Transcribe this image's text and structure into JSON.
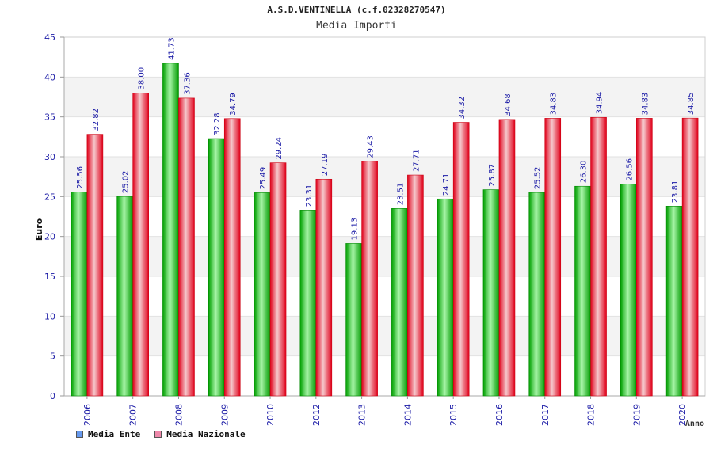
{
  "chart_data": {
    "type": "bar",
    "title": "A.S.D.VENTINELLA (c.f.02328270547)",
    "subtitle": "Media Importi",
    "xlabel": "Anno",
    "ylabel": "Euro",
    "ylim": [
      0,
      45
    ],
    "yticks": [
      "0",
      "5",
      "10",
      "15",
      "20",
      "25",
      "30",
      "35",
      "40",
      "45"
    ],
    "categories": [
      "2006",
      "2007",
      "2008",
      "2009",
      "2010",
      "2012",
      "2013",
      "2014",
      "2015",
      "2016",
      "2017",
      "2018",
      "2019",
      "2020"
    ],
    "series": [
      {
        "name": "Media Ente",
        "color": "#00b400",
        "legend_color": "#6699ee",
        "values": [
          25.56,
          25.02,
          41.73,
          32.28,
          25.49,
          23.31,
          19.13,
          23.51,
          24.71,
          25.87,
          25.52,
          26.3,
          26.56,
          23.81
        ],
        "labels": [
          "25.56",
          "25.02",
          "41.73",
          "32.28",
          "25.49",
          "23.31",
          "19.13",
          "23.51",
          "24.71",
          "25.87",
          "25.52",
          "26.30",
          "26.56",
          "23.81"
        ]
      },
      {
        "name": "Media Nazionale",
        "color": "#ee1122",
        "legend_color": "#ee88aa",
        "values": [
          32.82,
          38.0,
          37.36,
          34.79,
          29.24,
          27.19,
          29.43,
          27.71,
          34.32,
          34.68,
          34.83,
          34.94,
          34.83,
          34.85
        ],
        "labels": [
          "32.82",
          "38.00",
          "37.36",
          "34.79",
          "29.24",
          "27.19",
          "29.43",
          "27.71",
          "34.32",
          "34.68",
          "34.83",
          "34.94",
          "34.83",
          "34.85"
        ]
      }
    ],
    "grid": true,
    "legend_position": "bottom-left"
  }
}
